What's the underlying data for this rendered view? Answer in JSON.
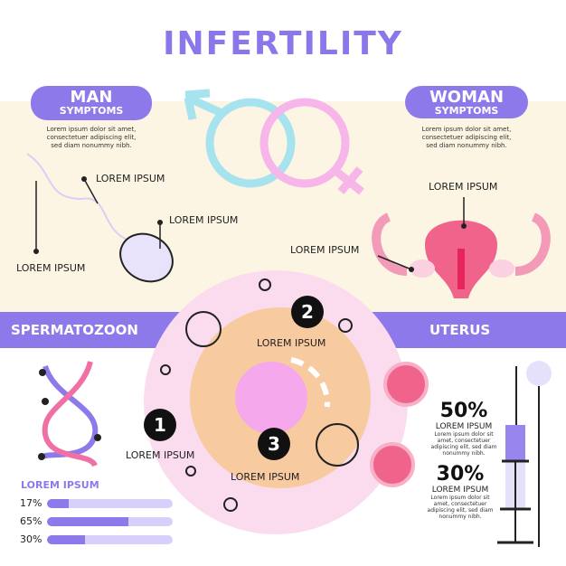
{
  "title": "INFERTILITY",
  "man": {
    "heading": "MAN",
    "sub": "SYMPTOMS",
    "text": [
      "Lorem ipsum dolor sit amet,",
      "consectetuer adipiscing elit,",
      "sed diam nonummy nibh."
    ],
    "labels": [
      "LOREM IPSUM",
      "LOREM IPSUM",
      "LOREM IPSUM"
    ]
  },
  "woman": {
    "heading": "WOMAN",
    "sub": "SYMPTOMS",
    "text": [
      "Lorem ipsum dolor sit amet,",
      "consectetuer adipiscing elit,",
      "sed diam nonummy nibh."
    ],
    "labels": [
      "LOREM IPSUM",
      "LOREM IPSUM"
    ]
  },
  "band": {
    "left": "SPERMATOZOON",
    "right": "UTERUS"
  },
  "steps": [
    {
      "number": "1",
      "label": "LOREM IPSUM"
    },
    {
      "number": "2",
      "label": "LOREM IPSUM"
    },
    {
      "number": "3",
      "label": "LOREM IPSUM"
    }
  ],
  "stats": [
    {
      "value": "50%",
      "label": "LOREM IPSUM",
      "text": [
        "Lorem ipsum dolor sit",
        "amet, consectetuer",
        "adipiscing elit, sed diam",
        "nonummy nibh."
      ]
    },
    {
      "value": "30%",
      "label": "LOREM IPSUM",
      "text": [
        "Lorem ipsum dolor sit",
        "amet, consectetuer",
        "adipiscing elit, sed diam",
        "nonummy nibh."
      ]
    }
  ],
  "bars": {
    "title": "LOREM IPSUM",
    "items": [
      {
        "label": "17%",
        "value": 17
      },
      {
        "label": "65%",
        "value": 65
      },
      {
        "label": "30%",
        "value": 30
      }
    ]
  },
  "colors": {
    "accent": "#8d79ea",
    "cream": "#fdf5e4",
    "pink": "#f7a9e8",
    "peach": "#f8caa0",
    "coral": "#f0648c",
    "teal": "#a6e3ef"
  },
  "icons": [
    "male-symbol-icon",
    "female-symbol-icon",
    "sperm-icon",
    "uterus-icon",
    "dna-icon",
    "syringe-icon"
  ]
}
